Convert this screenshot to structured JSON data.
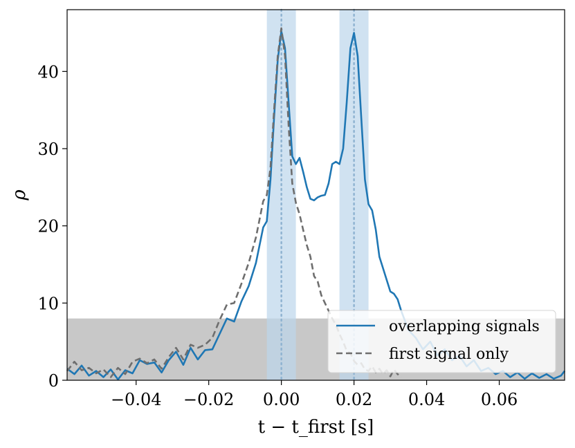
{
  "chart_data": {
    "type": "line",
    "title": "",
    "xlabel": "t − t_first [s]",
    "ylabel": "ρ",
    "xlim": [
      -0.059,
      0.078
    ],
    "ylim": [
      0,
      48
    ],
    "grid": false,
    "x_ticks": [
      -0.04,
      -0.02,
      0.0,
      0.02,
      0.04,
      0.06
    ],
    "x_tick_labels": [
      "−0.04",
      "−0.02",
      "0.00",
      "0.02",
      "0.04",
      "0.06"
    ],
    "y_ticks": [
      0,
      10,
      20,
      30,
      40
    ],
    "y_tick_labels": [
      "0",
      "10",
      "20",
      "30",
      "40"
    ],
    "threshold_band": {
      "y_from": 0,
      "y_to": 8,
      "color": "#c8c8c8"
    },
    "highlight_windows": [
      {
        "x_from": -0.004,
        "x_to": 0.004,
        "center": 0.0,
        "color": "#bcd6eb"
      },
      {
        "x_from": 0.016,
        "x_to": 0.024,
        "center": 0.02,
        "color": "#bcd6eb"
      }
    ],
    "legend": {
      "placement": "lower-right"
    },
    "series": [
      {
        "name": "overlapping signals",
        "style": "solid",
        "color": "#1f77b4",
        "points": [
          [
            -0.059,
            1.5
          ],
          [
            -0.057,
            0.8
          ],
          [
            -0.055,
            1.9
          ],
          [
            -0.053,
            0.6
          ],
          [
            -0.051,
            1.2
          ],
          [
            -0.049,
            0.4
          ],
          [
            -0.047,
            1.4
          ],
          [
            -0.045,
            0.1
          ],
          [
            -0.043,
            1.3
          ],
          [
            -0.041,
            0.9
          ],
          [
            -0.039,
            2.6
          ],
          [
            -0.037,
            2.1
          ],
          [
            -0.035,
            2.3
          ],
          [
            -0.033,
            1.0
          ],
          [
            -0.031,
            2.6
          ],
          [
            -0.029,
            3.7
          ],
          [
            -0.027,
            2.0
          ],
          [
            -0.025,
            4.2
          ],
          [
            -0.023,
            2.7
          ],
          [
            -0.021,
            3.9
          ],
          [
            -0.019,
            4.0
          ],
          [
            -0.017,
            6.0
          ],
          [
            -0.015,
            8.0
          ],
          [
            -0.013,
            7.6
          ],
          [
            -0.011,
            10.2
          ],
          [
            -0.009,
            12.2
          ],
          [
            -0.007,
            15.2
          ],
          [
            -0.005,
            19.8
          ],
          [
            -0.004,
            20.6
          ],
          [
            -0.003,
            26.0
          ],
          [
            -0.002,
            34.0
          ],
          [
            -0.001,
            41.5
          ],
          [
            0.0,
            45.2
          ],
          [
            0.001,
            43.0
          ],
          [
            0.002,
            36.0
          ],
          [
            0.003,
            29.0
          ],
          [
            0.004,
            28.0
          ],
          [
            0.005,
            28.8
          ],
          [
            0.006,
            27.0
          ],
          [
            0.007,
            25.0
          ],
          [
            0.008,
            23.5
          ],
          [
            0.009,
            23.3
          ],
          [
            0.01,
            23.7
          ],
          [
            0.011,
            23.9
          ],
          [
            0.012,
            24.0
          ],
          [
            0.013,
            25.5
          ],
          [
            0.014,
            28.0
          ],
          [
            0.015,
            28.3
          ],
          [
            0.016,
            28.0
          ],
          [
            0.017,
            30.0
          ],
          [
            0.018,
            36.0
          ],
          [
            0.019,
            43.0
          ],
          [
            0.02,
            45.0
          ],
          [
            0.021,
            42.0
          ],
          [
            0.022,
            34.0
          ],
          [
            0.023,
            26.0
          ],
          [
            0.024,
            22.8
          ],
          [
            0.025,
            22.0
          ],
          [
            0.026,
            19.5
          ],
          [
            0.027,
            16.0
          ],
          [
            0.028,
            14.5
          ],
          [
            0.029,
            13.0
          ],
          [
            0.03,
            11.5
          ],
          [
            0.031,
            11.2
          ],
          [
            0.032,
            10.5
          ],
          [
            0.033,
            9.0
          ],
          [
            0.035,
            6.5
          ],
          [
            0.037,
            5.5
          ],
          [
            0.039,
            4.0
          ],
          [
            0.041,
            5.0
          ],
          [
            0.043,
            3.2
          ],
          [
            0.045,
            4.0
          ],
          [
            0.047,
            2.6
          ],
          [
            0.049,
            3.2
          ],
          [
            0.051,
            1.8
          ],
          [
            0.053,
            2.6
          ],
          [
            0.055,
            1.2
          ],
          [
            0.057,
            1.6
          ],
          [
            0.059,
            0.8
          ],
          [
            0.061,
            1.2
          ],
          [
            0.063,
            0.4
          ],
          [
            0.065,
            1.0
          ],
          [
            0.067,
            0.2
          ],
          [
            0.069,
            0.9
          ],
          [
            0.071,
            0.3
          ],
          [
            0.073,
            0.8
          ],
          [
            0.075,
            0.2
          ],
          [
            0.077,
            0.6
          ],
          [
            0.078,
            1.2
          ]
        ]
      },
      {
        "name": "first signal only",
        "style": "dashed",
        "color": "#6e6e6e",
        "points": [
          [
            -0.059,
            1.2
          ],
          [
            -0.057,
            2.4
          ],
          [
            -0.055,
            1.3
          ],
          [
            -0.053,
            1.6
          ],
          [
            -0.051,
            0.9
          ],
          [
            -0.049,
            1.4
          ],
          [
            -0.047,
            0.4
          ],
          [
            -0.045,
            1.6
          ],
          [
            -0.043,
            0.8
          ],
          [
            -0.041,
            2.4
          ],
          [
            -0.039,
            2.8
          ],
          [
            -0.037,
            2.2
          ],
          [
            -0.035,
            2.7
          ],
          [
            -0.033,
            1.5
          ],
          [
            -0.031,
            3.0
          ],
          [
            -0.029,
            4.2
          ],
          [
            -0.027,
            2.7
          ],
          [
            -0.025,
            4.6
          ],
          [
            -0.023,
            4.2
          ],
          [
            -0.021,
            4.6
          ],
          [
            -0.019,
            5.5
          ],
          [
            -0.017,
            7.8
          ],
          [
            -0.015,
            9.8
          ],
          [
            -0.013,
            10.0
          ],
          [
            -0.011,
            12.5
          ],
          [
            -0.009,
            15.2
          ],
          [
            -0.007,
            18.5
          ],
          [
            -0.005,
            23.2
          ],
          [
            -0.004,
            24.0
          ],
          [
            -0.003,
            27.5
          ],
          [
            -0.002,
            35.0
          ],
          [
            -0.001,
            42.0
          ],
          [
            0.0,
            45.6
          ],
          [
            0.001,
            42.0
          ],
          [
            0.002,
            33.0
          ],
          [
            0.003,
            25.5
          ],
          [
            0.004,
            23.0
          ],
          [
            0.005,
            21.5
          ],
          [
            0.006,
            19.5
          ],
          [
            0.007,
            17.5
          ],
          [
            0.008,
            16.0
          ],
          [
            0.009,
            13.5
          ],
          [
            0.01,
            12.8
          ],
          [
            0.011,
            11.0
          ],
          [
            0.012,
            10.0
          ],
          [
            0.013,
            9.0
          ],
          [
            0.014,
            8.0
          ],
          [
            0.015,
            7.2
          ],
          [
            0.016,
            6.0
          ],
          [
            0.017,
            5.0
          ],
          [
            0.018,
            3.8
          ],
          [
            0.019,
            3.5
          ],
          [
            0.02,
            2.5
          ],
          [
            0.021,
            2.0
          ],
          [
            0.022,
            2.2
          ],
          [
            0.023,
            1.4
          ],
          [
            0.024,
            1.2
          ],
          [
            0.025,
            1.8
          ],
          [
            0.026,
            1.0
          ],
          [
            0.027,
            1.5
          ],
          [
            0.028,
            0.8
          ],
          [
            0.029,
            1.3
          ],
          [
            0.03,
            0.5
          ],
          [
            0.031,
            1.4
          ],
          [
            0.032,
            0.8
          ],
          [
            0.033,
            0.4
          ]
        ]
      }
    ]
  }
}
